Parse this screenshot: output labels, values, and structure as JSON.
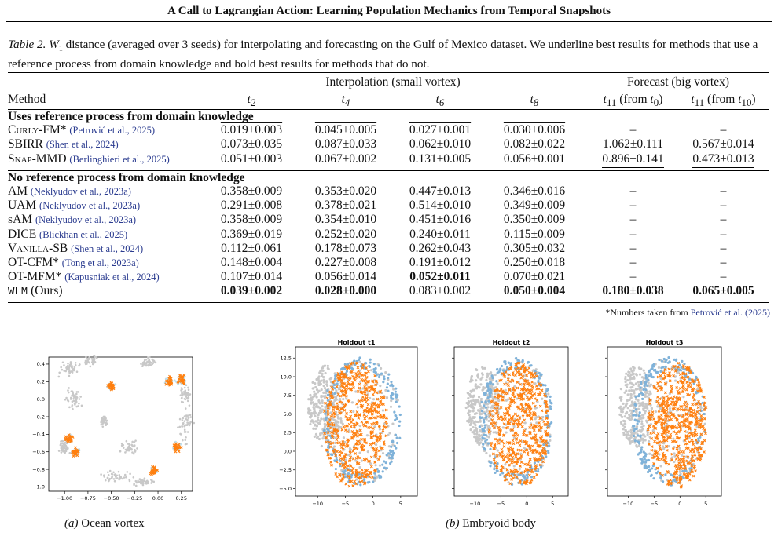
{
  "header": {
    "title": "A Call to Lagrangian Action: Learning Population Mechanics from Temporal Snapshots"
  },
  "caption": {
    "label": "Table 2.",
    "metric": "W",
    "metric_sub": "1",
    "text": " distance (averaged over 3 seeds) for interpolating and forecasting on the Gulf of Mexico dataset. We underline best results for methods that use a reference process from domain knowledge and bold best results for methods that do not."
  },
  "table": {
    "group_interp": "Interpolation (small vortex)",
    "group_forecast": "Forecast (big vortex)",
    "col_method": "Method",
    "cols": [
      "t2",
      "t4",
      "t6",
      "t8",
      "t11 (from t0)",
      "t11 (from t10)"
    ],
    "section1": "Uses reference process from domain knowledge",
    "section2": "No reference process from domain knowledge",
    "rows1": [
      {
        "name": "Curly-FM*",
        "cite": "(Petrović et al., 2025)",
        "vals": [
          "0.019±0.003",
          "0.045±0.005",
          "0.027±0.001",
          "0.030±0.006",
          "–",
          "–"
        ]
      },
      {
        "name": "SBIRR",
        "cite": "(Shen et al., 2024)",
        "vals": [
          "0.073±0.035",
          "0.087±0.033",
          "0.062±0.010",
          "0.082±0.022",
          "1.062±0.111",
          "0.567±0.014"
        ]
      },
      {
        "name": "Snap-MMD",
        "cite": "(Berlinghieri et al., 2025)",
        "vals": [
          "0.051±0.003",
          "0.067±0.002",
          "0.131±0.005",
          "0.056±0.001",
          "0.896±0.141",
          "0.473±0.013"
        ]
      }
    ],
    "rows2": [
      {
        "name": "AM",
        "cite": "(Neklyudov et al., 2023a)",
        "vals": [
          "0.358±0.009",
          "0.353±0.020",
          "0.447±0.013",
          "0.346±0.016",
          "–",
          "–"
        ]
      },
      {
        "name": "UAM",
        "cite": "(Neklyudov et al., 2023a)",
        "vals": [
          "0.291±0.008",
          "0.378±0.021",
          "0.514±0.010",
          "0.349±0.009",
          "–",
          "–"
        ]
      },
      {
        "name": "sAM",
        "cite": "(Neklyudov et al., 2023a)",
        "vals": [
          "0.358±0.009",
          "0.354±0.010",
          "0.451±0.016",
          "0.350±0.009",
          "–",
          "–"
        ]
      },
      {
        "name": "DICE",
        "cite": "(Blickhan et al., 2025)",
        "vals": [
          "0.369±0.019",
          "0.252±0.020",
          "0.240±0.011",
          "0.115±0.009",
          "–",
          "–"
        ]
      },
      {
        "name": "Vanilla-SB",
        "cite": "(Shen et al., 2024)",
        "vals": [
          "0.112±0.061",
          "0.178±0.073",
          "0.262±0.043",
          "0.305±0.032",
          "–",
          "–"
        ]
      },
      {
        "name": "OT-CFM*",
        "cite": "(Tong et al., 2023a)",
        "vals": [
          "0.148±0.004",
          "0.227±0.008",
          "0.191±0.012",
          "0.250±0.018",
          "–",
          "–"
        ]
      },
      {
        "name": "OT-MFM*",
        "cite": "(Kapusniak et al., 2024)",
        "vals": [
          "0.107±0.014",
          "0.056±0.014",
          "0.052±0.011",
          "0.070±0.021",
          "–",
          "–"
        ]
      },
      {
        "name": "WLM",
        "suffix": " (Ours)",
        "vals": [
          "0.039±0.002",
          "0.028±0.000",
          "0.083±0.002",
          "0.050±0.004",
          "0.180±0.038",
          "0.065±0.005"
        ]
      }
    ]
  },
  "footnote": {
    "text": "*Numbers taken from ",
    "cite": "Petrović et al. (2025)"
  },
  "figure": {
    "ocean_caption_label": "(a)",
    "ocean_caption": " Ocean vortex",
    "embryoid_caption_label": "(b)",
    "embryoid_caption": " Embryoid body",
    "ocean_xticks": [
      "−1.00",
      "−0.75",
      "−0.50",
      "−0.25",
      "0.00",
      "0.25"
    ],
    "ocean_yticks": [
      "0.4",
      "0.2",
      "0.0",
      "−0.2",
      "−0.4",
      "−0.6",
      "−0.8",
      "−1.0"
    ],
    "panel_titles": [
      "Holdout t1",
      "Holdout t2",
      "Holdout t3"
    ],
    "panel_title_base": "Holdout ",
    "panel_yticks": [
      "12.5",
      "10.0",
      "7.5",
      "5.0",
      "2.5",
      "0.0",
      "−2.5",
      "−5.0"
    ],
    "panel_xticks": [
      "−10",
      "−5",
      "0",
      "5"
    ],
    "colors": {
      "gray": "#c8c8c8",
      "blue": "#7fb2d9",
      "lightblue": "#bfe0ee",
      "orange": "#ff7f0e"
    }
  }
}
